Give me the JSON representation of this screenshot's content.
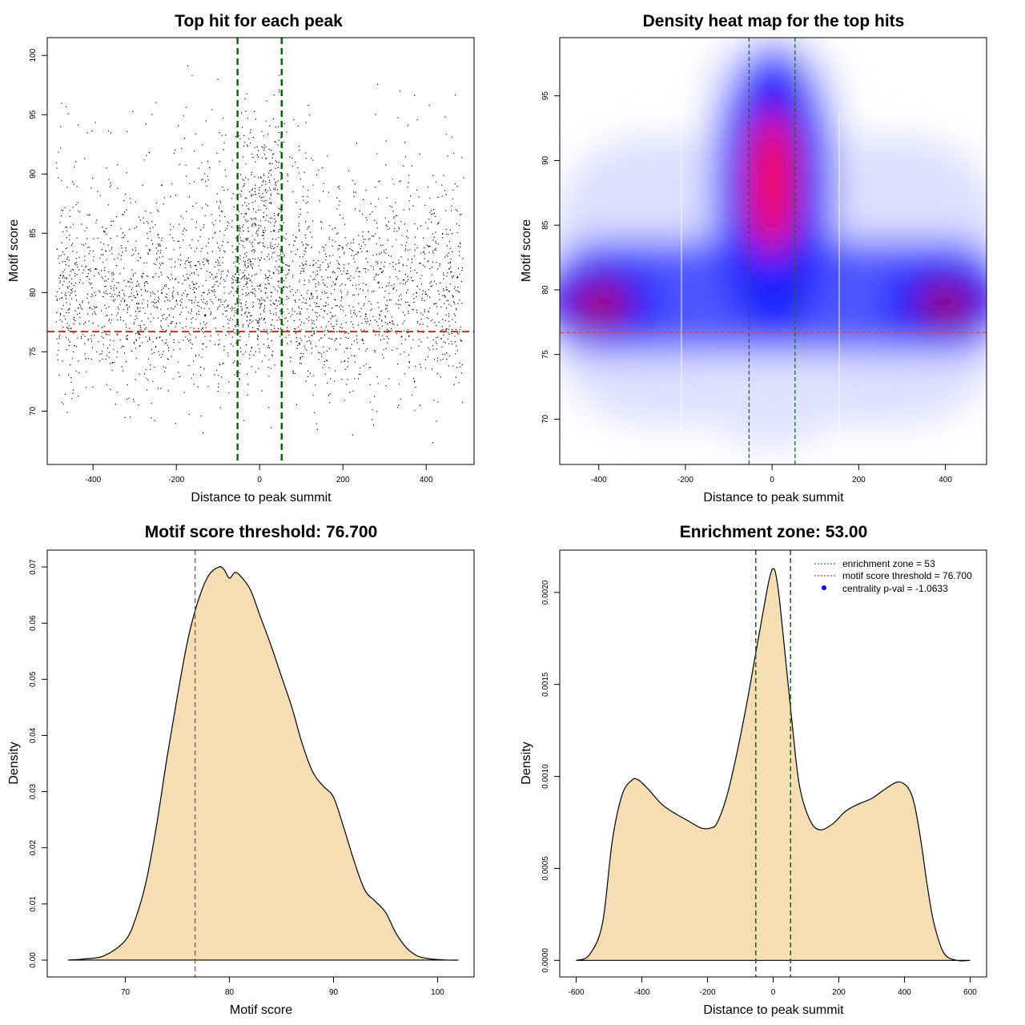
{
  "chart_data": [
    {
      "type": "scatter",
      "title": "Top hit for each peak",
      "xlabel": "Distance to peak summit",
      "ylabel": "Motif score",
      "xlim": [
        -510,
        515
      ],
      "ylim": [
        65.5,
        101.5
      ],
      "xticks": [
        -400,
        -200,
        0,
        200,
        400
      ],
      "yticks": [
        70,
        75,
        80,
        85,
        90,
        95,
        100
      ],
      "vlines": [
        -53,
        53
      ],
      "hline": 76.7,
      "point_color": "#000000",
      "point_count_approx": 10000,
      "description_of_distribution": {
        "x_range": [
          -490,
          490
        ],
        "background_score_mean": 79.5,
        "central_cluster_x_range": [
          -53,
          53
        ],
        "central_cluster_score_mean": 86.5
      }
    },
    {
      "type": "heatmap",
      "title": "Density heat map for the top hits",
      "xlabel": "Distance to peak summit",
      "ylabel": "Motif score",
      "xlim": [
        -490,
        495
      ],
      "ylim": [
        66.5,
        99.5
      ],
      "xticks": [
        -400,
        -200,
        0,
        200,
        400
      ],
      "yticks": [
        70,
        75,
        80,
        85,
        90,
        95
      ],
      "vlines": [
        -53,
        53
      ],
      "hline": 76.7,
      "colors": [
        "#ffffff",
        "#0000ff",
        "#ff0000"
      ],
      "hotspots": [
        {
          "x": 0,
          "y": 87.5,
          "level": "high"
        },
        {
          "x": -400,
          "y": 79,
          "level": "medium"
        },
        {
          "x": 400,
          "y": 79,
          "level": "medium"
        }
      ]
    },
    {
      "type": "area",
      "title": "Motif score threshold: 76.700",
      "xlabel": "Motif score",
      "ylabel": "Density",
      "xlim": [
        62.5,
        103.5
      ],
      "ylim": [
        -0.003,
        0.073
      ],
      "xticks": [
        70,
        80,
        90,
        100
      ],
      "yticks": [
        0.0,
        0.01,
        0.02,
        0.03,
        0.04,
        0.05,
        0.06,
        0.07
      ],
      "ytick_labels": [
        "0.00",
        "0.01",
        "0.02",
        "0.03",
        "0.04",
        "0.05",
        "0.06",
        "0.07"
      ],
      "vline": 76.7,
      "fill": "#f5deb3",
      "x": [
        64.5,
        66,
        68,
        70,
        71,
        72,
        73,
        74,
        75,
        76,
        77,
        78,
        79,
        79.5,
        80,
        80.5,
        81,
        82,
        83,
        84,
        85,
        86,
        87,
        88,
        89,
        90,
        91,
        92,
        93,
        94,
        95,
        96,
        97,
        98,
        99,
        100,
        101,
        102
      ],
      "y": [
        0.0,
        0.0002,
        0.0008,
        0.0035,
        0.0075,
        0.014,
        0.024,
        0.036,
        0.047,
        0.057,
        0.064,
        0.0685,
        0.07,
        0.0695,
        0.068,
        0.069,
        0.0685,
        0.066,
        0.061,
        0.056,
        0.0505,
        0.045,
        0.0385,
        0.0335,
        0.031,
        0.029,
        0.0235,
        0.0175,
        0.0125,
        0.0105,
        0.0085,
        0.0048,
        0.0022,
        0.0008,
        0.0003,
        0.0001,
        0.0,
        0.0
      ]
    },
    {
      "type": "area",
      "title": "Enrichment zone: 53.00",
      "xlabel": "Distance to peak summit",
      "ylabel": "Density",
      "xlim": [
        -650,
        650
      ],
      "ylim": [
        -9e-05,
        0.00223
      ],
      "xticks": [
        -600,
        -400,
        -200,
        0,
        200,
        400,
        600
      ],
      "yticks": [
        0.0,
        0.0005,
        0.001,
        0.0015,
        0.002
      ],
      "ytick_labels": [
        "0.0000",
        "0.0005",
        "0.0010",
        "0.0015",
        "0.0020"
      ],
      "vlines": [
        -53,
        53
      ],
      "fill": "#f5deb3",
      "x": [
        -600,
        -560,
        -520,
        -490,
        -460,
        -430,
        -410,
        -380,
        -340,
        -300,
        -260,
        -220,
        -190,
        -170,
        -140,
        -110,
        -80,
        -60,
        -40,
        -20,
        -8,
        0,
        8,
        20,
        40,
        60,
        80,
        110,
        140,
        180,
        220,
        260,
        300,
        340,
        380,
        410,
        430,
        450,
        470,
        490,
        520,
        560,
        600
      ],
      "y": [
        0.0,
        3e-05,
        0.0002,
        0.00065,
        0.0009,
        0.00098,
        0.00098,
        0.00093,
        0.00085,
        0.0008,
        0.00076,
        0.00072,
        0.00072,
        0.00075,
        0.0009,
        0.00113,
        0.0014,
        0.0016,
        0.0018,
        0.002,
        0.0021,
        0.00213,
        0.0021,
        0.00195,
        0.0016,
        0.00125,
        0.00095,
        0.00077,
        0.00071,
        0.00074,
        0.00081,
        0.00085,
        0.00088,
        0.00093,
        0.00097,
        0.00094,
        0.00085,
        0.00065,
        0.0004,
        0.0002,
        4e-05,
        0.0,
        0.0
      ],
      "legend": [
        {
          "label": "enrichment zone = 53",
          "style": "dotted",
          "color": "#006400"
        },
        {
          "label": "motif score threshold = 76.700",
          "style": "dotted",
          "color": "#ff0000"
        },
        {
          "label": "centrality p-val = -1.0633",
          "style": "point",
          "color": "#0000ff"
        }
      ],
      "legend_position": "top-right"
    }
  ]
}
